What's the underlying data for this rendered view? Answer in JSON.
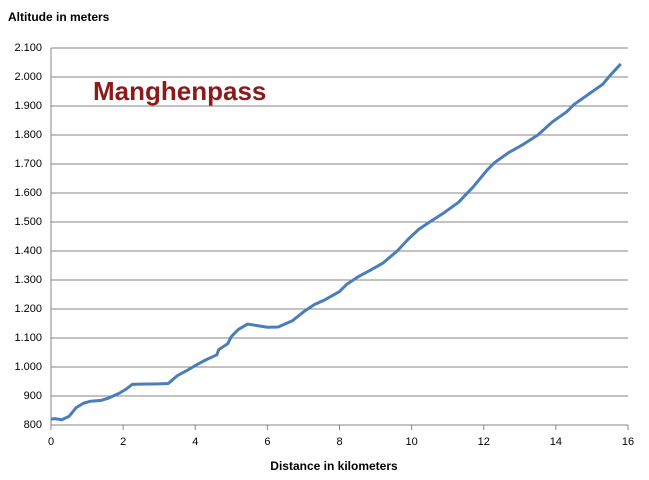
{
  "chart_data": {
    "type": "line",
    "title": "Manghenpass",
    "y_label": "Altitude in meters",
    "x_label": "Distance in kilometers",
    "x": [
      0,
      0.1,
      0.3,
      0.5,
      0.7,
      0.9,
      1.1,
      1.4,
      1.6,
      1.9,
      2.1,
      2.25,
      2.5,
      3.0,
      3.25,
      3.5,
      3.8,
      4.0,
      4.3,
      4.6,
      4.65,
      4.9,
      5.0,
      5.2,
      5.45,
      5.7,
      6.0,
      6.3,
      6.7,
      7.0,
      7.3,
      7.6,
      8.0,
      8.2,
      8.5,
      8.8,
      9.2,
      9.6,
      9.9,
      10.2,
      10.5,
      10.9,
      11.3,
      11.7,
      12.1,
      12.3,
      12.7,
      13.1,
      13.5,
      13.9,
      14.3,
      14.5,
      14.9,
      15.3,
      15.5,
      15.8
    ],
    "series": [
      {
        "color": "#4a7ebb",
        "values": [
          820,
          822,
          818,
          830,
          860,
          875,
          882,
          885,
          893,
          910,
          925,
          940,
          941,
          942,
          943,
          970,
          990,
          1005,
          1025,
          1042,
          1060,
          1080,
          1105,
          1130,
          1148,
          1143,
          1137,
          1138,
          1160,
          1190,
          1215,
          1232,
          1260,
          1285,
          1310,
          1330,
          1358,
          1400,
          1440,
          1475,
          1500,
          1532,
          1568,
          1620,
          1680,
          1705,
          1740,
          1768,
          1800,
          1845,
          1880,
          1905,
          1940,
          1975,
          2005,
          2045
        ]
      }
    ],
    "xlim": [
      0,
      16
    ],
    "xticks": [
      0,
      2,
      4,
      6,
      8,
      10,
      12,
      14,
      16
    ],
    "ylim": [
      800,
      2100
    ],
    "yticks": [
      800,
      900,
      {
        "value": 1000,
        "label": "1.000"
      },
      {
        "value": 1100,
        "label": "1.100"
      },
      {
        "value": 1200,
        "label": "1.200"
      },
      {
        "value": 1300,
        "label": "1.300"
      },
      {
        "value": 1400,
        "label": "1.400"
      },
      {
        "value": 1500,
        "label": "1.500"
      },
      {
        "value": 1600,
        "label": "1.600"
      },
      {
        "value": 1700,
        "label": "1.700"
      },
      {
        "value": 1800,
        "label": "1.800"
      },
      {
        "value": 1900,
        "label": "1.900"
      },
      {
        "value": 2000,
        "label": "2.000"
      },
      {
        "value": 2100,
        "label": "2.100"
      }
    ],
    "grid": true
  }
}
